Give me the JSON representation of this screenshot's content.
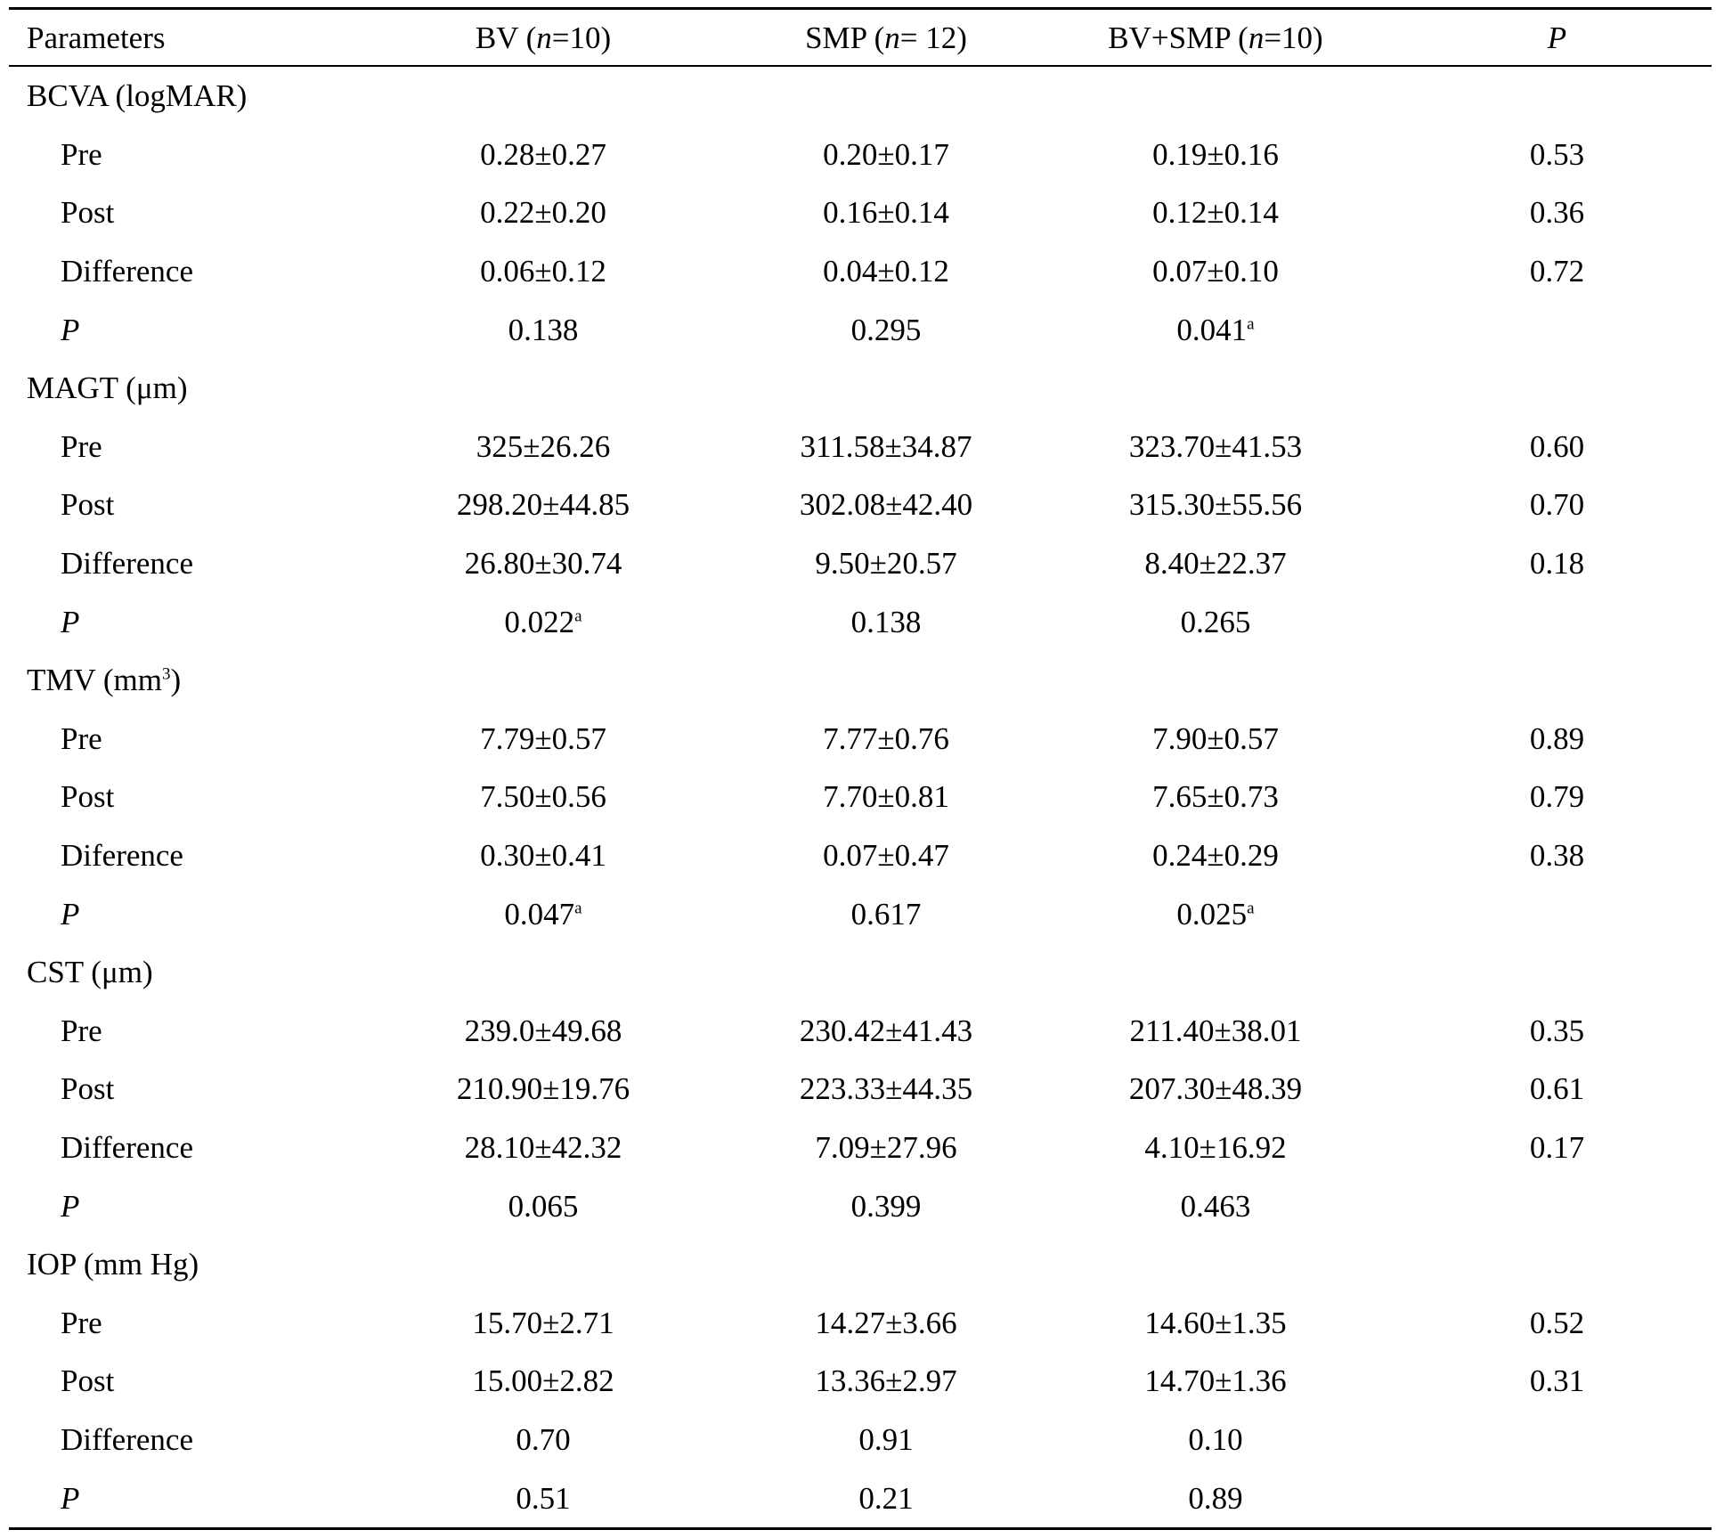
{
  "header": {
    "parameters": "Parameters",
    "bv_prefix": "BV (",
    "bv_n": "n",
    "bv_suffix": "=10)",
    "smp_prefix": "SMP (",
    "smp_n": "n",
    "smp_suffix": "= 12)",
    "bvsmp_prefix": "BV+SMP (",
    "bvsmp_n": "n",
    "bvsmp_suffix": "=10)",
    "p": "P"
  },
  "groups": [
    {
      "label": "BCVA (logMAR)",
      "label_sup": "",
      "label_after": "",
      "rows": [
        {
          "label": "Pre",
          "italic": false,
          "bv": "0.28±0.27",
          "bv_sup": "",
          "smp": "0.20±0.17",
          "smp_sup": "",
          "bvsmp": "0.19±0.16",
          "bvsmp_sup": "",
          "p": "0.53"
        },
        {
          "label": "Post",
          "italic": false,
          "bv": "0.22±0.20",
          "bv_sup": "",
          "smp": "0.16±0.14",
          "smp_sup": "",
          "bvsmp": "0.12±0.14",
          "bvsmp_sup": "",
          "p": "0.36"
        },
        {
          "label": "Difference",
          "italic": false,
          "bv": "0.06±0.12",
          "bv_sup": "",
          "smp": "0.04±0.12",
          "smp_sup": "",
          "bvsmp": "0.07±0.10",
          "bvsmp_sup": "",
          "p": "0.72"
        },
        {
          "label": "P",
          "italic": true,
          "bv": "0.138",
          "bv_sup": "",
          "smp": "0.295",
          "smp_sup": "",
          "bvsmp": "0.041",
          "bvsmp_sup": "a",
          "p": ""
        }
      ]
    },
    {
      "label": "MAGT (μm)",
      "label_sup": "",
      "label_after": "",
      "rows": [
        {
          "label": "Pre",
          "italic": false,
          "bv": "325±26.26",
          "bv_sup": "",
          "smp": "311.58±34.87",
          "smp_sup": "",
          "bvsmp": "323.70±41.53",
          "bvsmp_sup": "",
          "p": "0.60"
        },
        {
          "label": "Post",
          "italic": false,
          "bv": "298.20±44.85",
          "bv_sup": "",
          "smp": "302.08±42.40",
          "smp_sup": "",
          "bvsmp": "315.30±55.56",
          "bvsmp_sup": "",
          "p": "0.70"
        },
        {
          "label": "Difference",
          "italic": false,
          "bv": "26.80±30.74",
          "bv_sup": "",
          "smp": "9.50±20.57",
          "smp_sup": "",
          "bvsmp": "8.40±22.37",
          "bvsmp_sup": "",
          "p": "0.18"
        },
        {
          "label": "P",
          "italic": true,
          "bv": "0.022",
          "bv_sup": "a",
          "smp": "0.138",
          "smp_sup": "",
          "bvsmp": "0.265",
          "bvsmp_sup": "",
          "p": ""
        }
      ]
    },
    {
      "label": "TMV (mm",
      "label_sup": "3",
      "label_after": ")",
      "rows": [
        {
          "label": "Pre",
          "italic": false,
          "bv": "7.79±0.57",
          "bv_sup": "",
          "smp": "7.77±0.76",
          "smp_sup": "",
          "bvsmp": "7.90±0.57",
          "bvsmp_sup": "",
          "p": "0.89"
        },
        {
          "label": "Post",
          "italic": false,
          "bv": "7.50±0.56",
          "bv_sup": "",
          "smp": "7.70±0.81",
          "smp_sup": "",
          "bvsmp": "7.65±0.73",
          "bvsmp_sup": "",
          "p": "0.79"
        },
        {
          "label": "Diference",
          "italic": false,
          "bv": "0.30±0.41",
          "bv_sup": "",
          "smp": "0.07±0.47",
          "smp_sup": "",
          "bvsmp": "0.24±0.29",
          "bvsmp_sup": "",
          "p": "0.38"
        },
        {
          "label": "P",
          "italic": true,
          "bv": "0.047",
          "bv_sup": "a",
          "smp": "0.617",
          "smp_sup": "",
          "bvsmp": "0.025",
          "bvsmp_sup": "a",
          "p": ""
        }
      ]
    },
    {
      "label": "CST (μm)",
      "label_sup": "",
      "label_after": "",
      "rows": [
        {
          "label": "Pre",
          "italic": false,
          "bv": "239.0±49.68",
          "bv_sup": "",
          "smp": "230.42±41.43",
          "smp_sup": "",
          "bvsmp": "211.40±38.01",
          "bvsmp_sup": "",
          "p": "0.35"
        },
        {
          "label": "Post",
          "italic": false,
          "bv": "210.90±19.76",
          "bv_sup": "",
          "smp": "223.33±44.35",
          "smp_sup": "",
          "bvsmp": "207.30±48.39",
          "bvsmp_sup": "",
          "p": "0.61"
        },
        {
          "label": "Difference",
          "italic": false,
          "bv": "28.10±42.32",
          "bv_sup": "",
          "smp": "7.09±27.96",
          "smp_sup": "",
          "bvsmp": "4.10±16.92",
          "bvsmp_sup": "",
          "p": "0.17"
        },
        {
          "label": "P",
          "italic": true,
          "bv": "0.065",
          "bv_sup": "",
          "smp": "0.399",
          "smp_sup": "",
          "bvsmp": "0.463",
          "bvsmp_sup": "",
          "p": ""
        }
      ]
    },
    {
      "label": "IOP (mm Hg)",
      "label_sup": "",
      "label_after": "",
      "rows": [
        {
          "label": "Pre",
          "italic": false,
          "bv": "15.70±2.71",
          "bv_sup": "",
          "smp": "14.27±3.66",
          "smp_sup": "",
          "bvsmp": "14.60±1.35",
          "bvsmp_sup": "",
          "p": "0.52"
        },
        {
          "label": "Post",
          "italic": false,
          "bv": "15.00±2.82",
          "bv_sup": "",
          "smp": "13.36±2.97",
          "smp_sup": "",
          "bvsmp": "14.70±1.36",
          "bvsmp_sup": "",
          "p": "0.31"
        },
        {
          "label": "Difference",
          "italic": false,
          "bv": "0.70",
          "bv_sup": "",
          "smp": "0.91",
          "smp_sup": "",
          "bvsmp": "0.10",
          "bvsmp_sup": "",
          "p": ""
        },
        {
          "label": "P",
          "italic": true,
          "bv": "0.51",
          "bv_sup": "",
          "smp": "0.21",
          "smp_sup": "",
          "bvsmp": "0.89",
          "bvsmp_sup": "",
          "p": ""
        }
      ]
    }
  ]
}
